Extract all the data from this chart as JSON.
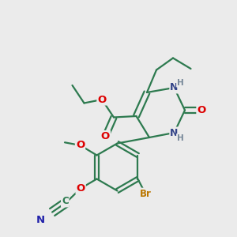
{
  "bg_color": "#ebebeb",
  "bond_color": "#2d7a4f",
  "bond_width": 1.6,
  "atom_colors": {
    "O": "#dd0000",
    "N": "#2222aa",
    "Br": "#bb7700",
    "H": "#778899",
    "N_ring": "#334488"
  },
  "font_size_atom": 9.5,
  "font_size_small": 8.0,
  "dbl_sep": 0.12
}
